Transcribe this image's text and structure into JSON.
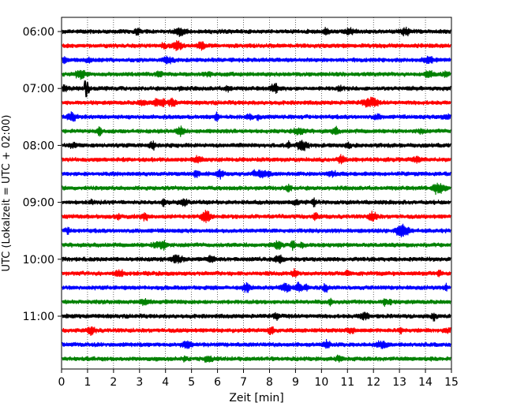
{
  "chart_data": {
    "type": "line",
    "xlabel": "Zeit  [min]",
    "ylabel": "UTC (Lokalzeit = UTC + 02:00)",
    "xlim": [
      0,
      15
    ],
    "x_ticks": [
      "0",
      "1",
      "2",
      "3",
      "4",
      "5",
      "6",
      "7",
      "8",
      "9",
      "10",
      "11",
      "12",
      "13",
      "14",
      "15"
    ],
    "y_tick_labels": [
      "06:00",
      "07:00",
      "08:00",
      "09:00",
      "10:00",
      "11:00"
    ],
    "grid": "vertical dotted at each minute",
    "trace_colors": [
      "#000000",
      "#ff0000",
      "#0000ff",
      "#008000"
    ],
    "traces": [
      {
        "start": "06:00",
        "color": "#000000"
      },
      {
        "start": "06:15",
        "color": "#ff0000"
      },
      {
        "start": "06:30",
        "color": "#0000ff"
      },
      {
        "start": "06:45",
        "color": "#008000"
      },
      {
        "start": "07:00",
        "color": "#000000"
      },
      {
        "start": "07:15",
        "color": "#ff0000"
      },
      {
        "start": "07:30",
        "color": "#0000ff"
      },
      {
        "start": "07:45",
        "color": "#008000"
      },
      {
        "start": "08:00",
        "color": "#000000"
      },
      {
        "start": "08:15",
        "color": "#ff0000"
      },
      {
        "start": "08:30",
        "color": "#0000ff"
      },
      {
        "start": "08:45",
        "color": "#008000"
      },
      {
        "start": "09:00",
        "color": "#000000"
      },
      {
        "start": "09:15",
        "color": "#ff0000"
      },
      {
        "start": "09:30",
        "color": "#0000ff"
      },
      {
        "start": "09:45",
        "color": "#008000"
      },
      {
        "start": "10:00",
        "color": "#000000"
      },
      {
        "start": "10:15",
        "color": "#ff0000"
      },
      {
        "start": "10:30",
        "color": "#0000ff"
      },
      {
        "start": "10:45",
        "color": "#008000"
      },
      {
        "start": "11:00",
        "color": "#000000"
      },
      {
        "start": "11:15",
        "color": "#ff0000"
      },
      {
        "start": "11:30",
        "color": "#0000ff"
      },
      {
        "start": "11:45",
        "color": "#008000"
      }
    ]
  }
}
